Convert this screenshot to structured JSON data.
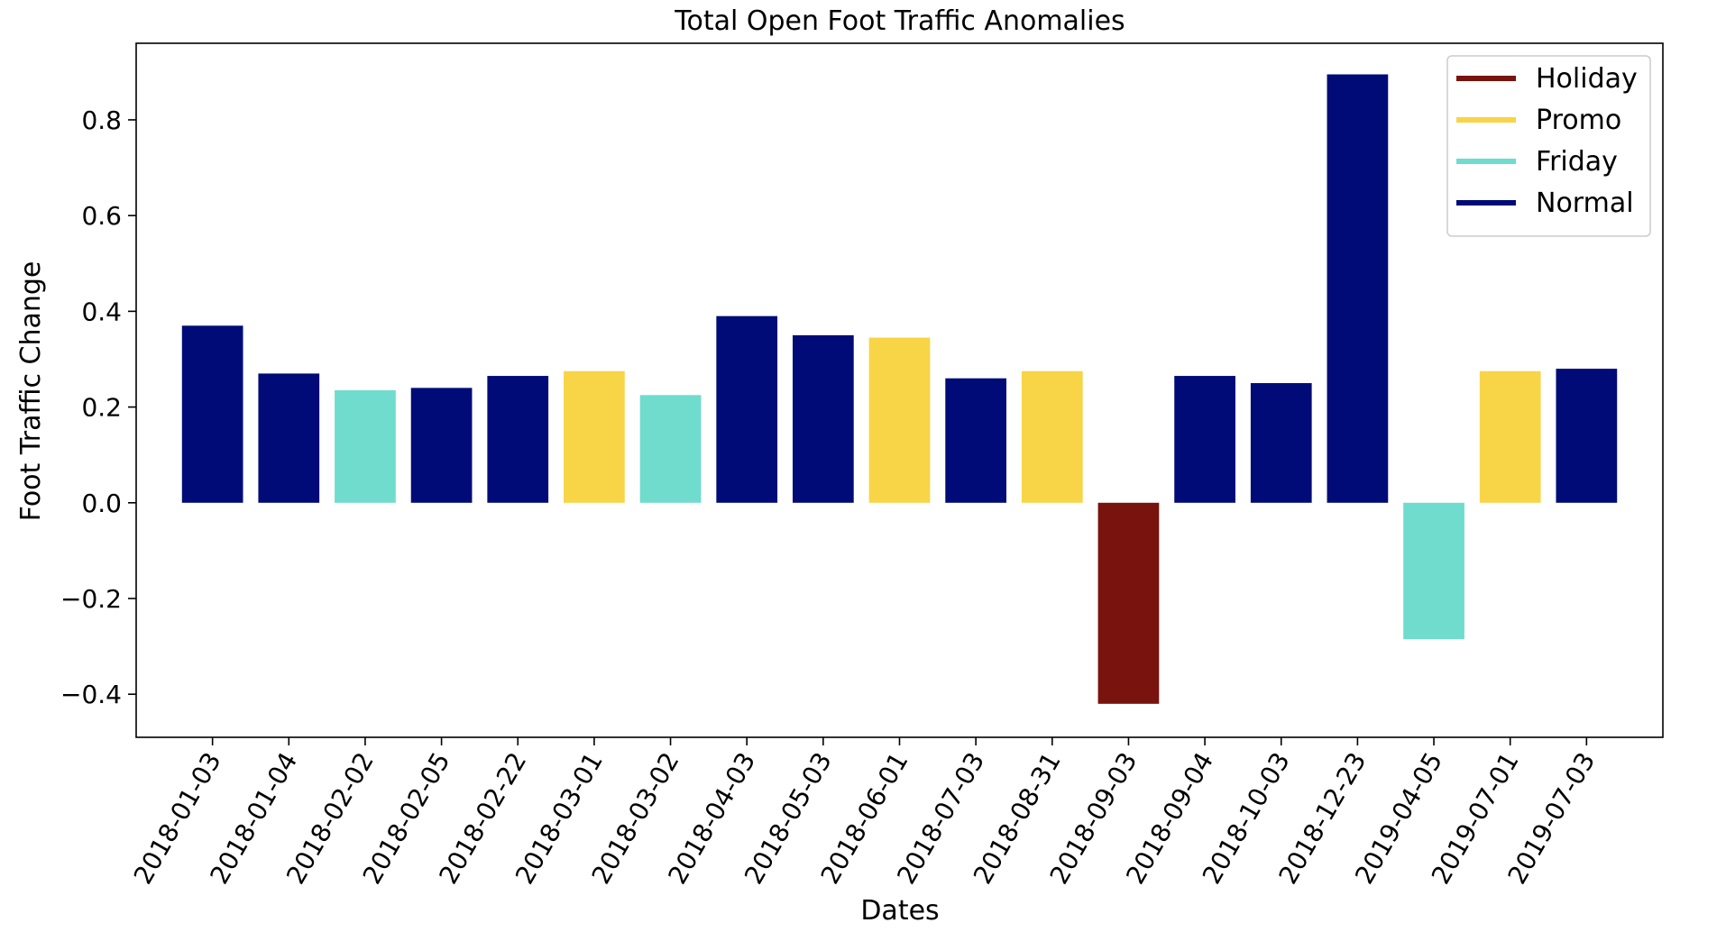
{
  "chart_data": {
    "type": "bar",
    "title": "Total Open Foot Traffic Anomalies",
    "xlabel": "Dates",
    "ylabel": "Foot Traffic Change",
    "categories": [
      "2018-01-03",
      "2018-01-04",
      "2018-02-02",
      "2018-02-05",
      "2018-02-22",
      "2018-03-01",
      "2018-03-02",
      "2018-04-03",
      "2018-05-03",
      "2018-06-01",
      "2018-07-03",
      "2018-08-31",
      "2018-09-03",
      "2018-09-04",
      "2018-10-03",
      "2018-12-23",
      "2019-04-05",
      "2019-07-01",
      "2019-07-03"
    ],
    "values": [
      0.37,
      0.27,
      0.235,
      0.24,
      0.265,
      0.275,
      0.225,
      0.39,
      0.35,
      0.345,
      0.26,
      0.275,
      -0.42,
      0.265,
      0.25,
      0.895,
      -0.285,
      0.275,
      0.28
    ],
    "bar_types": [
      "Normal",
      "Normal",
      "Friday",
      "Normal",
      "Normal",
      "Promo",
      "Friday",
      "Normal",
      "Normal",
      "Promo",
      "Normal",
      "Promo",
      "Holiday",
      "Normal",
      "Normal",
      "Normal",
      "Friday",
      "Promo",
      "Normal"
    ],
    "ylim": [
      -0.49,
      0.96
    ],
    "yticks": [
      -0.4,
      -0.2,
      0.0,
      0.2,
      0.4,
      0.6,
      0.8
    ],
    "ytick_labels": [
      "−0.4",
      "−0.2",
      "0.0",
      "0.2",
      "0.4",
      "0.6",
      "0.8"
    ],
    "grid": false,
    "legend_position": "top-right",
    "legend": [
      {
        "name": "Holiday",
        "color": "#78130d"
      },
      {
        "name": "Promo",
        "color": "#f8d447"
      },
      {
        "name": "Friday",
        "color": "#6fdccd"
      },
      {
        "name": "Normal",
        "color": "#000b77"
      }
    ]
  }
}
